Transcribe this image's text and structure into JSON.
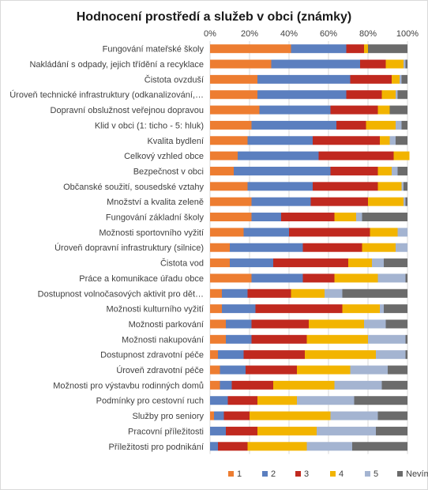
{
  "chart_data": {
    "type": "bar",
    "orientation": "horizontal-stacked-100",
    "title": "Hodnocení prostředí a služeb v obci (známky)",
    "xlabel": "",
    "ylabel": "",
    "xlim": [
      0,
      100
    ],
    "x_ticks": [
      "0%",
      "20%",
      "40%",
      "60%",
      "80%",
      "100%"
    ],
    "grid": true,
    "legend_position": "bottom",
    "categories": [
      "Fungování mateřské školy",
      "Nakládání s odpady, jejich třídění a recyklace",
      "Čistota ovzduší",
      "Úroveň technické infrastruktury (odkanalizování,…",
      "Dopravní obslužnost veřejnou dopravou",
      "Klid v obci (1: ticho - 5: hluk)",
      "Kvalita bydlení",
      "Celkový vzhled obce",
      "Bezpečnost v obci",
      "Občanské soužití, sousedské vztahy",
      "Množství a kvalita zeleně",
      "Fungování základní školy",
      "Možnosti sportovního vyžití",
      "Úroveň dopravní infrastruktury (silnice)",
      "Čistota vod",
      "Práce a komunikace úřadu obce",
      "Dostupnost volnočasových aktivit pro dět…",
      "Možnosti kulturního vyžití",
      "Možnosti parkování",
      "Možnosti nakupování",
      "Dostupnost zdravotní péče",
      "Úroveň zdravotní péče",
      "Možnosti pro výstavbu rodinných domů",
      "Podmínky pro cestovní ruch",
      "Služby pro seniory",
      "Pracovní příležitosti",
      "Příležitosti pro podnikání"
    ],
    "series": [
      {
        "name": "1",
        "color": "#ED7D31",
        "values": [
          41,
          31,
          24,
          24,
          25,
          21,
          19,
          14,
          12,
          19,
          21,
          21,
          17,
          10,
          10,
          21,
          6,
          6,
          8,
          8,
          4,
          5,
          5,
          0,
          2,
          0,
          0
        ]
      },
      {
        "name": "2",
        "color": "#5B7FBF",
        "values": [
          28,
          45,
          47,
          45,
          36,
          43,
          33,
          41,
          49,
          33,
          30,
          15,
          23,
          37,
          22,
          26,
          13,
          17,
          13,
          13,
          13,
          13,
          6,
          9,
          5,
          8,
          4
        ]
      },
      {
        "name": "3",
        "color": "#C0291F",
        "values": [
          9,
          13,
          21,
          18,
          24,
          15,
          34,
          38,
          24,
          33,
          29,
          27,
          41,
          30,
          38,
          16,
          22,
          44,
          29,
          28,
          31,
          26,
          21,
          15,
          13,
          16,
          15
        ]
      },
      {
        "name": "4",
        "color": "#F2B400",
        "values": [
          2,
          9,
          4,
          7,
          6,
          15,
          5,
          8,
          7,
          12,
          18,
          11,
          14,
          17,
          12,
          22,
          17,
          19,
          28,
          31,
          36,
          27,
          31,
          20,
          41,
          30,
          30
        ]
      },
      {
        "name": "5",
        "color": "#A4B4D1",
        "values": [
          0,
          1,
          1,
          1,
          0,
          3,
          3,
          0,
          3,
          1,
          1,
          3,
          5,
          6,
          6,
          14,
          9,
          2,
          11,
          19,
          15,
          19,
          24,
          29,
          24,
          30,
          23
        ]
      },
      {
        "name": "Nevím",
        "color": "#6B6B6B",
        "values": [
          20,
          1,
          3,
          5,
          9,
          3,
          6,
          0,
          5,
          2,
          1,
          23,
          0,
          0,
          12,
          1,
          33,
          12,
          11,
          1,
          1,
          10,
          13,
          27,
          15,
          16,
          28
        ]
      }
    ]
  }
}
